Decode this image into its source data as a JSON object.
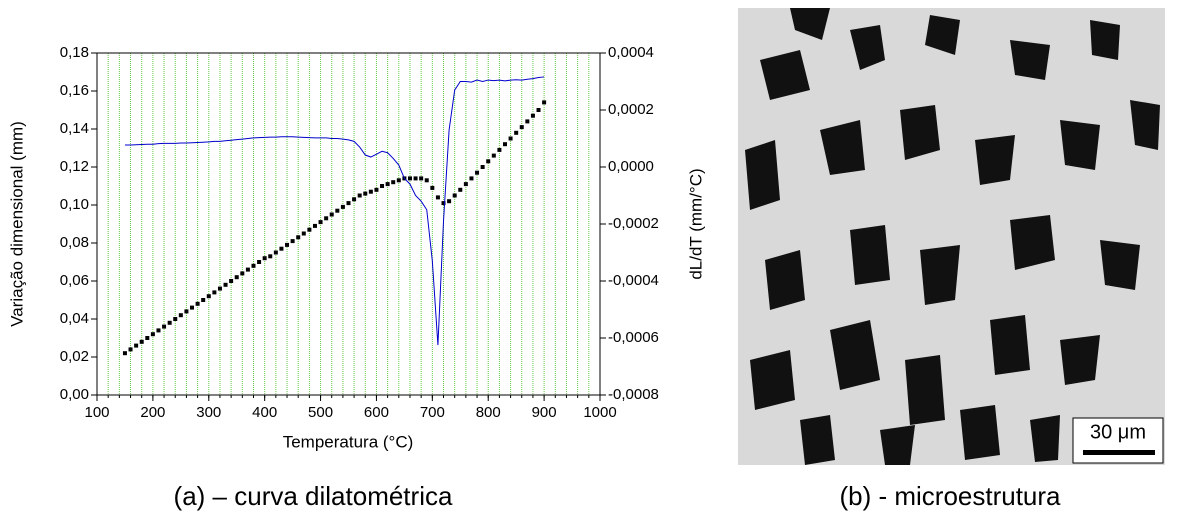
{
  "chart_data": {
    "type": "line",
    "xlabel": "Temperatura (°C)",
    "ylabel": "Variação dimensional (mm)",
    "y2label": "dL/dT (mm/°C)",
    "xlim": [
      100,
      1000
    ],
    "xticks": [
      100,
      200,
      300,
      400,
      500,
      600,
      700,
      800,
      900,
      1000
    ],
    "xminorticks": [
      100,
      120,
      140,
      160,
      180,
      200,
      220,
      240,
      260,
      280,
      300,
      320,
      340,
      360,
      380,
      400,
      420,
      440,
      460,
      480,
      500,
      520,
      540,
      560,
      580,
      600,
      620,
      640,
      660,
      680,
      700,
      720,
      740,
      760,
      780,
      800,
      820,
      840,
      860,
      880,
      900,
      920,
      940,
      960,
      980,
      1000
    ],
    "ylim": [
      0,
      0.18
    ],
    "yticks": [
      {
        "value": 0,
        "label": "0,00"
      },
      {
        "value": 0.02,
        "label": "0,02"
      },
      {
        "value": 0.04,
        "label": "0,04"
      },
      {
        "value": 0.06,
        "label": "0,06"
      },
      {
        "value": 0.08,
        "label": "0,08"
      },
      {
        "value": 0.1,
        "label": "0,10"
      },
      {
        "value": 0.12,
        "label": "0,12"
      },
      {
        "value": 0.14,
        "label": "0,14"
      },
      {
        "value": 0.16,
        "label": "0,16"
      },
      {
        "value": 0.18,
        "label": "0,18"
      }
    ],
    "y2lim": [
      -0.0008,
      0.0004
    ],
    "y2ticks": [
      {
        "value": -0.0008,
        "label": "-0,0008"
      },
      {
        "value": -0.0006,
        "label": "-0,0006"
      },
      {
        "value": -0.0004,
        "label": "-0,0004"
      },
      {
        "value": -0.0002,
        "label": "-0,0002"
      },
      {
        "value": 0,
        "label": "0,0000"
      },
      {
        "value": 0.0002,
        "label": "0,0002"
      },
      {
        "value": 0.0004,
        "label": "0,0004"
      }
    ],
    "grid": true,
    "grid_color": "#66cc44",
    "x": [
      150,
      160,
      170,
      180,
      190,
      200,
      210,
      220,
      230,
      240,
      250,
      260,
      270,
      280,
      290,
      300,
      310,
      320,
      330,
      340,
      350,
      360,
      370,
      380,
      390,
      400,
      410,
      420,
      430,
      440,
      450,
      460,
      470,
      480,
      490,
      500,
      510,
      520,
      530,
      540,
      550,
      560,
      570,
      580,
      590,
      600,
      610,
      620,
      630,
      640,
      650,
      660,
      670,
      680,
      690,
      700,
      710,
      720,
      730,
      740,
      750,
      760,
      770,
      780,
      790,
      800,
      810,
      820,
      830,
      840,
      850,
      860,
      870,
      880,
      890,
      900
    ],
    "series": [
      {
        "color": "#000000",
        "marker": "square",
        "values": [
          0.022,
          0.024,
          0.026,
          0.028,
          0.03,
          0.032,
          0.034,
          0.036,
          0.038,
          0.04,
          0.042,
          0.044,
          0.046,
          0.048,
          0.05,
          0.052,
          0.054,
          0.056,
          0.058,
          0.06,
          0.062,
          0.064,
          0.066,
          0.068,
          0.07,
          0.072,
          0.073,
          0.075,
          0.077,
          0.079,
          0.081,
          0.083,
          0.085,
          0.087,
          0.089,
          0.091,
          0.093,
          0.095,
          0.097,
          0.099,
          0.101,
          0.103,
          0.105,
          0.106,
          0.107,
          0.108,
          0.11,
          0.111,
          0.112,
          0.113,
          0.114,
          0.114,
          0.114,
          0.114,
          0.113,
          0.109,
          0.104,
          0.101,
          0.102,
          0.105,
          0.108,
          0.111,
          0.114,
          0.117,
          0.12,
          0.123,
          0.126,
          0.129,
          0.132,
          0.135,
          0.138,
          0.141,
          0.144,
          0.147,
          0.15,
          0.154
        ]
      },
      {
        "color": "#0000cc",
        "axis": "y2",
        "values": [
          7.7e-05,
          7.7e-05,
          7.8e-05,
          7.9e-05,
          8e-05,
          8e-05,
          8.2e-05,
          8.3e-05,
          8.3e-05,
          8.3e-05,
          8.4e-05,
          8.4e-05,
          8.5e-05,
          8.6e-05,
          8.7e-05,
          8.8e-05,
          9e-05,
          9e-05,
          9.2e-05,
          9.4e-05,
          9.6e-05,
          9.8e-05,
          0.0001,
          0.000102,
          0.000103,
          0.000104,
          0.000105,
          0.000105,
          0.000106,
          0.000106,
          0.000106,
          0.000105,
          0.000104,
          0.000103,
          0.000102,
          0.000102,
          0.000102,
          0.0001,
          0.0001,
          9.8e-05,
          9.5e-05,
          9e-05,
          7e-05,
          4.2e-05,
          3.5e-05,
          4.5e-05,
          5.5e-05,
          5e-05,
          3e-05,
          7e-06,
          -4e-05,
          -6e-05,
          -0.0001,
          -0.00012,
          -0.00015,
          -0.00033,
          -0.000625,
          -0.00019,
          0.00013,
          0.00027,
          0.0003,
          0.0003,
          0.000298,
          0.000305,
          0.0003,
          0.000305,
          0.000303,
          0.000305,
          0.000302,
          0.000305,
          0.000306,
          0.000305,
          0.000308,
          0.00031,
          0.000314,
          0.000316
        ]
      }
    ]
  },
  "image": {
    "scale_bar": "30 μm"
  },
  "captions": [
    "(a) – curva dilatométrica",
    "(b) - microestrutura"
  ]
}
